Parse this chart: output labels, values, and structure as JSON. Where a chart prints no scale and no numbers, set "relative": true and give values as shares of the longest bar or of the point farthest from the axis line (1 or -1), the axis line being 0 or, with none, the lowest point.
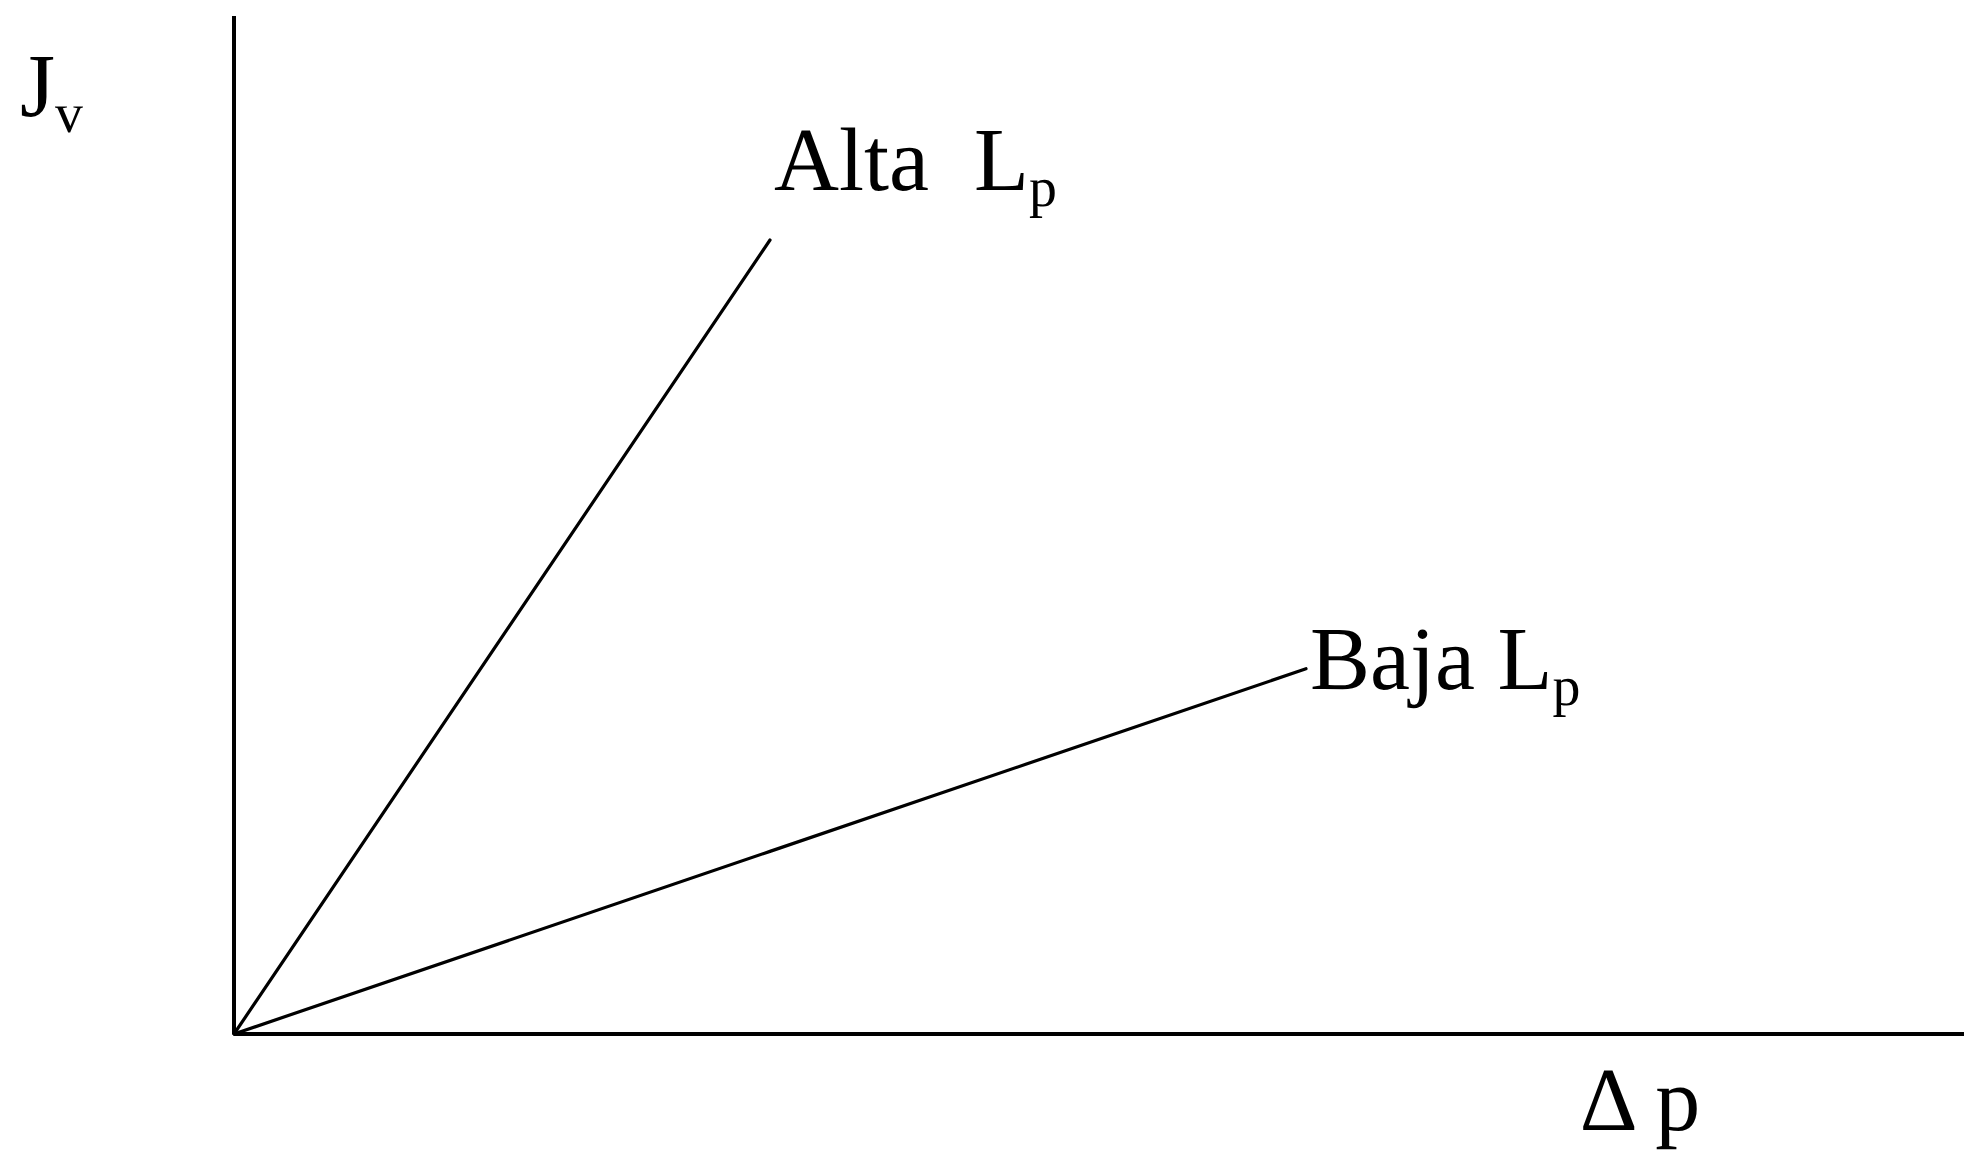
{
  "chart_data": {
    "type": "line",
    "xlabel": "Δ p",
    "ylabel": "J$_{v}$",
    "relative": true,
    "categories": [
      null,
      null,
      null
    ],
    "series": [
      {
        "name": "Alta  L$_{p}$",
        "color": "#000000",
        "values": [
          0,
          1,
          null
        ]
      },
      {
        "name": "Baja L$_{p}$",
        "color": "#000000",
        "values": [
          0,
          0.23,
          0.46
        ]
      }
    ]
  }
}
